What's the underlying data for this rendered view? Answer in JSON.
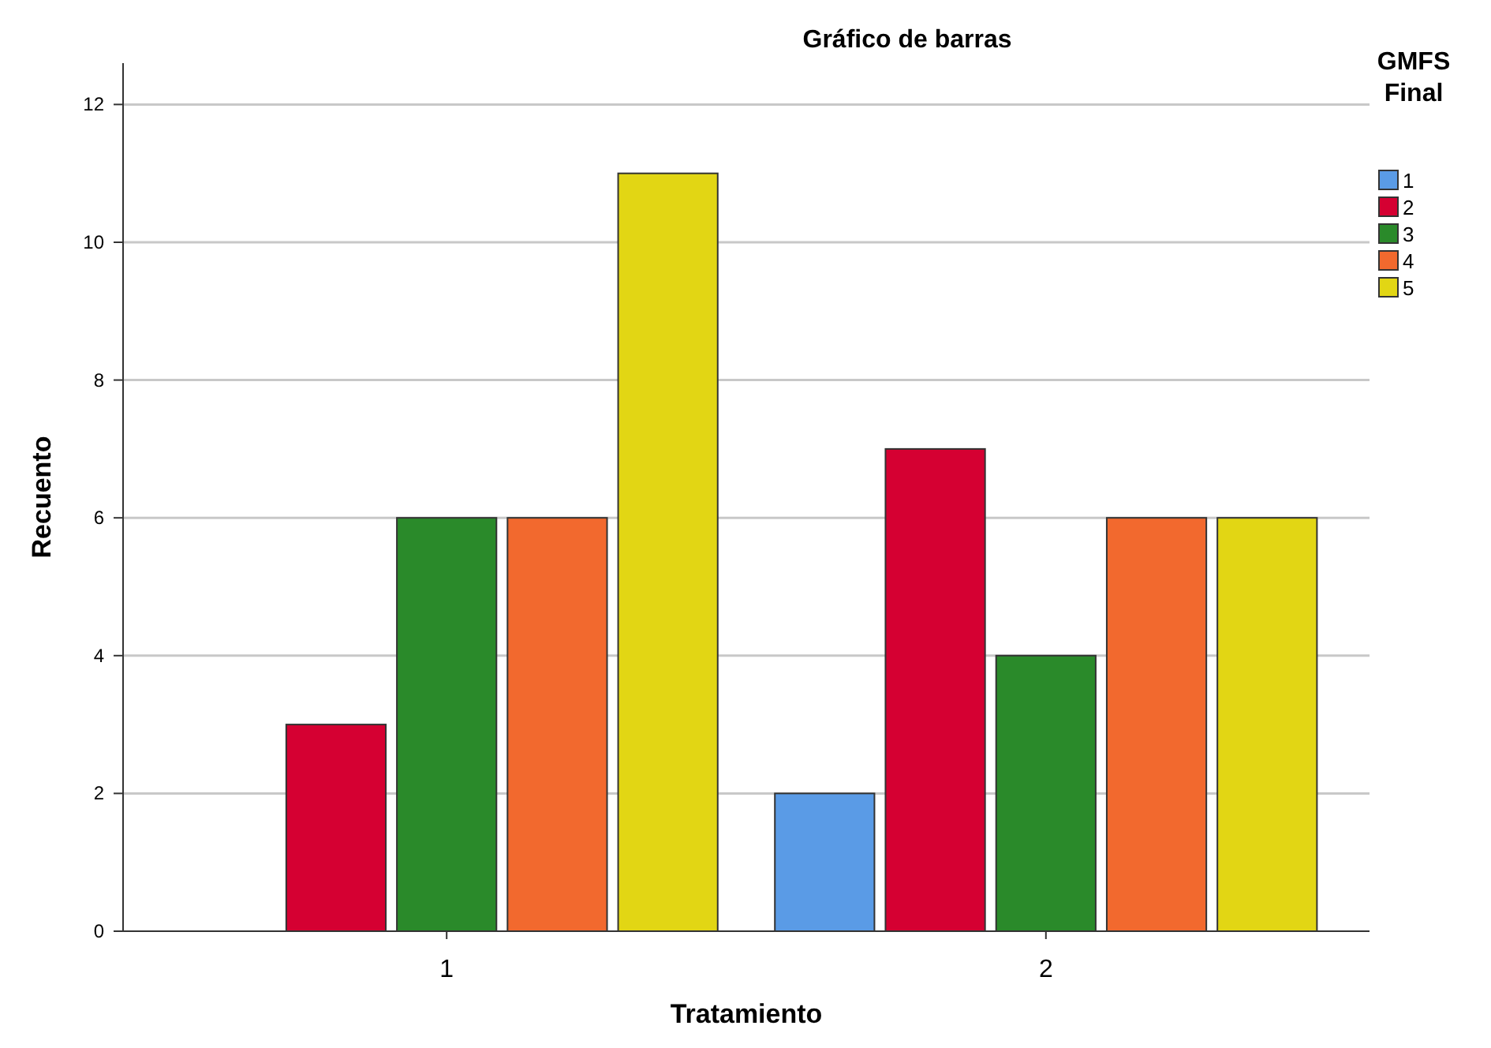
{
  "chart_data": {
    "type": "bar",
    "title": "Gráfico de barras",
    "xlabel": "Tratamiento",
    "ylabel": "Recuento",
    "legend_title": "GMFS Final",
    "categories": [
      "1",
      "2"
    ],
    "series": [
      {
        "name": "1",
        "color": "#5a9be6",
        "values": [
          null,
          2
        ]
      },
      {
        "name": "2",
        "color": "#d50032",
        "values": [
          3,
          7
        ]
      },
      {
        "name": "3",
        "color": "#2a8a2a",
        "values": [
          6,
          4
        ]
      },
      {
        "name": "4",
        "color": "#f2692e",
        "values": [
          6,
          6
        ]
      },
      {
        "name": "5",
        "color": "#e2d614",
        "values": [
          11,
          6
        ]
      }
    ],
    "ylim": [
      0,
      12.6
    ],
    "yticks": [
      0,
      2,
      4,
      6,
      8,
      10,
      12
    ],
    "grid": "y",
    "legend": "top right"
  }
}
